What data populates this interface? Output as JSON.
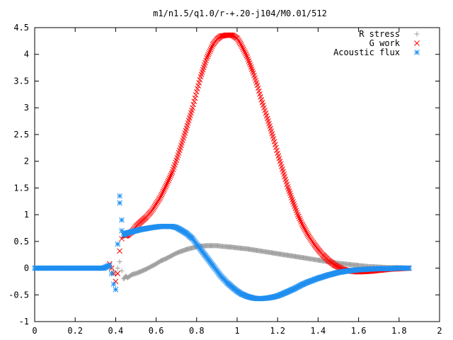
{
  "chart_data": {
    "type": "scatter",
    "title": "m1/n1.5/q1.0/r-+.20-j104/M0.01/512",
    "xlabel": "",
    "ylabel": "",
    "xlim": [
      0,
      2
    ],
    "ylim": [
      -1,
      4.5
    ],
    "x_ticks": [
      0,
      0.2,
      0.4,
      0.6,
      0.8,
      1,
      1.2,
      1.4,
      1.6,
      1.8,
      2
    ],
    "x_tick_labels": [
      "0",
      "0.2",
      "0.4",
      "0.6",
      "0.8",
      "1",
      "1.2",
      "1.4",
      "1.6",
      "1.8",
      "2"
    ],
    "y_ticks": [
      -1,
      -0.5,
      0,
      0.5,
      1,
      1.5,
      2,
      2.5,
      3,
      3.5,
      4,
      4.5
    ],
    "y_tick_labels": [
      "-1",
      "-0.5",
      "0",
      "0.5",
      "1",
      "1.5",
      "2",
      "2.5",
      "3",
      "3.5",
      "4",
      "4.5"
    ],
    "grid": false,
    "legend_position": "top-right",
    "series": [
      {
        "name": "R stress",
        "marker": "plus",
        "color": "#a0a0a0",
        "x": [
          0.37,
          0.38,
          0.39,
          0.4,
          0.41,
          0.42,
          0.43,
          0.44,
          0.45,
          0.46,
          0.48,
          0.5,
          0.52,
          0.55,
          0.58,
          0.6,
          0.62,
          0.65,
          0.68,
          0.7,
          0.72,
          0.75,
          0.78,
          0.8,
          0.82,
          0.85,
          0.88,
          0.9,
          0.92,
          0.95,
          0.98,
          1.0,
          1.05,
          1.1,
          1.15,
          1.2,
          1.25,
          1.3,
          1.35,
          1.4,
          1.45,
          1.5,
          1.55,
          1.6,
          1.65,
          1.7,
          1.75,
          1.8,
          1.85
        ],
        "y": [
          0.05,
          0.02,
          -0.05,
          -0.12,
          0.0,
          0.12,
          -0.05,
          -0.2,
          -0.15,
          -0.18,
          -0.12,
          -0.1,
          -0.07,
          -0.02,
          0.04,
          0.08,
          0.13,
          0.18,
          0.24,
          0.28,
          0.31,
          0.35,
          0.38,
          0.4,
          0.41,
          0.42,
          0.42,
          0.42,
          0.41,
          0.4,
          0.39,
          0.38,
          0.36,
          0.33,
          0.3,
          0.27,
          0.24,
          0.21,
          0.18,
          0.15,
          0.12,
          0.09,
          0.07,
          0.05,
          0.03,
          0.02,
          0.01,
          0.01,
          0.0
        ]
      },
      {
        "name": "G work",
        "marker": "cross",
        "color": "#ff0000",
        "x": [
          0.37,
          0.38,
          0.39,
          0.4,
          0.41,
          0.42,
          0.43,
          0.44,
          0.45,
          0.46,
          0.48,
          0.5,
          0.52,
          0.55,
          0.58,
          0.6,
          0.62,
          0.65,
          0.68,
          0.7,
          0.72,
          0.75,
          0.78,
          0.8,
          0.82,
          0.85,
          0.88,
          0.9,
          0.92,
          0.95,
          0.97,
          0.98,
          1.0,
          1.02,
          1.05,
          1.08,
          1.1,
          1.12,
          1.15,
          1.18,
          1.2,
          1.22,
          1.25,
          1.28,
          1.3,
          1.32,
          1.35,
          1.38,
          1.4,
          1.42,
          1.45,
          1.48,
          1.5,
          1.52,
          1.55,
          1.6,
          1.65,
          1.7,
          1.75,
          1.8,
          1.85
        ],
        "y": [
          0.08,
          0.0,
          -0.1,
          -0.25,
          -0.1,
          0.32,
          0.55,
          0.62,
          0.6,
          0.62,
          0.68,
          0.78,
          0.85,
          0.95,
          1.08,
          1.2,
          1.32,
          1.55,
          1.8,
          2.02,
          2.25,
          2.62,
          3.0,
          3.3,
          3.58,
          3.93,
          4.18,
          4.28,
          4.34,
          4.36,
          4.36,
          4.35,
          4.3,
          4.18,
          3.95,
          3.65,
          3.42,
          3.15,
          2.8,
          2.42,
          2.15,
          1.9,
          1.52,
          1.2,
          1.0,
          0.83,
          0.62,
          0.45,
          0.35,
          0.26,
          0.15,
          0.06,
          0.02,
          -0.02,
          -0.05,
          -0.07,
          -0.06,
          -0.04,
          -0.02,
          -0.01,
          0.0
        ]
      },
      {
        "name": "Acoustic flux",
        "marker": "star",
        "color": "#1f8ff0",
        "x": [
          0.0,
          0.05,
          0.1,
          0.15,
          0.2,
          0.25,
          0.3,
          0.34,
          0.37,
          0.38,
          0.39,
          0.4,
          0.41,
          0.42,
          0.42,
          0.43,
          0.43,
          0.44,
          0.45,
          0.46,
          0.48,
          0.5,
          0.52,
          0.55,
          0.58,
          0.6,
          0.62,
          0.65,
          0.68,
          0.7,
          0.72,
          0.75,
          0.78,
          0.8,
          0.82,
          0.85,
          0.88,
          0.9,
          0.92,
          0.95,
          0.98,
          1.0,
          1.02,
          1.05,
          1.08,
          1.1,
          1.12,
          1.15,
          1.18,
          1.2,
          1.22,
          1.25,
          1.28,
          1.3,
          1.32,
          1.35,
          1.4,
          1.45,
          1.5,
          1.55,
          1.6,
          1.65,
          1.7,
          1.75,
          1.8,
          1.85
        ],
        "y": [
          0.0,
          0.0,
          0.0,
          0.0,
          0.0,
          0.0,
          0.0,
          0.0,
          0.05,
          -0.1,
          -0.3,
          -0.4,
          0.45,
          1.35,
          1.22,
          0.9,
          0.7,
          0.62,
          0.65,
          0.66,
          0.68,
          0.7,
          0.72,
          0.74,
          0.76,
          0.77,
          0.78,
          0.78,
          0.78,
          0.76,
          0.72,
          0.65,
          0.55,
          0.45,
          0.35,
          0.2,
          0.05,
          -0.05,
          -0.15,
          -0.27,
          -0.37,
          -0.43,
          -0.48,
          -0.53,
          -0.56,
          -0.57,
          -0.57,
          -0.56,
          -0.54,
          -0.52,
          -0.49,
          -0.44,
          -0.39,
          -0.35,
          -0.31,
          -0.26,
          -0.19,
          -0.13,
          -0.08,
          -0.05,
          -0.03,
          -0.02,
          -0.01,
          -0.01,
          0.0,
          0.0
        ]
      }
    ]
  }
}
